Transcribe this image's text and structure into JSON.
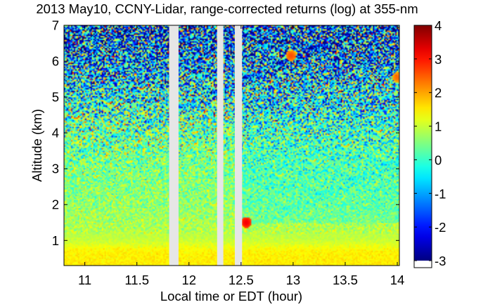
{
  "chart_data": {
    "type": "heatmap",
    "title": "2013 May10, CCNY-Lidar, range-corrected returns (log) at 355-nm",
    "xlabel": "Local time or EDT (hour)",
    "ylabel": "Altitude (km)",
    "xlim": [
      10.8,
      14.02
    ],
    "ylim": [
      0.3,
      7.0
    ],
    "xticks": [
      11,
      11.5,
      12,
      12.5,
      13,
      13.5,
      14
    ],
    "xtick_labels": [
      "11",
      "11.5",
      "12",
      "12.5",
      "13",
      "13.5",
      "14"
    ],
    "yticks": [
      1,
      2,
      3,
      4,
      5,
      6,
      7
    ],
    "ytick_labels": [
      "1",
      "2",
      "3",
      "4",
      "5",
      "6",
      "7"
    ],
    "colorbar": {
      "range": [
        -3,
        4
      ],
      "ticks": [
        -3,
        -2,
        -1,
        0,
        1,
        2,
        3,
        4
      ],
      "tick_labels": [
        "-3",
        "-2",
        "-1",
        "0",
        "1",
        "2",
        "3",
        "4"
      ],
      "colormap": "jet",
      "under_color": "#ffffff"
    },
    "data_gaps": [
      {
        "x_start": 11.81,
        "x_end": 11.9
      },
      {
        "x_start": 12.27,
        "x_end": 12.33
      },
      {
        "x_start": 12.44,
        "x_end": 12.51
      }
    ],
    "gap_color": "#e6e6e6",
    "profile": {
      "altitude_km": [
        0.3,
        0.7,
        1.0,
        1.3,
        1.6,
        2.0,
        2.5,
        3.0,
        3.5,
        4.0,
        4.5,
        5.0,
        5.5,
        6.0,
        6.5,
        7.0
      ],
      "mean_log_return": [
        1.5,
        1.45,
        1.0,
        0.85,
        0.75,
        0.65,
        0.55,
        0.5,
        0.45,
        0.4,
        0.15,
        -0.2,
        -0.6,
        -1.0,
        -1.3,
        -1.5
      ]
    },
    "hotspots": [
      {
        "time": 12.98,
        "altitude_km": 6.15,
        "log_return": 2.6
      },
      {
        "time": 14.0,
        "altitude_km": 5.55,
        "log_return": 2.4
      },
      {
        "time": 12.55,
        "altitude_km": 1.5,
        "log_return": 3.2
      }
    ]
  }
}
